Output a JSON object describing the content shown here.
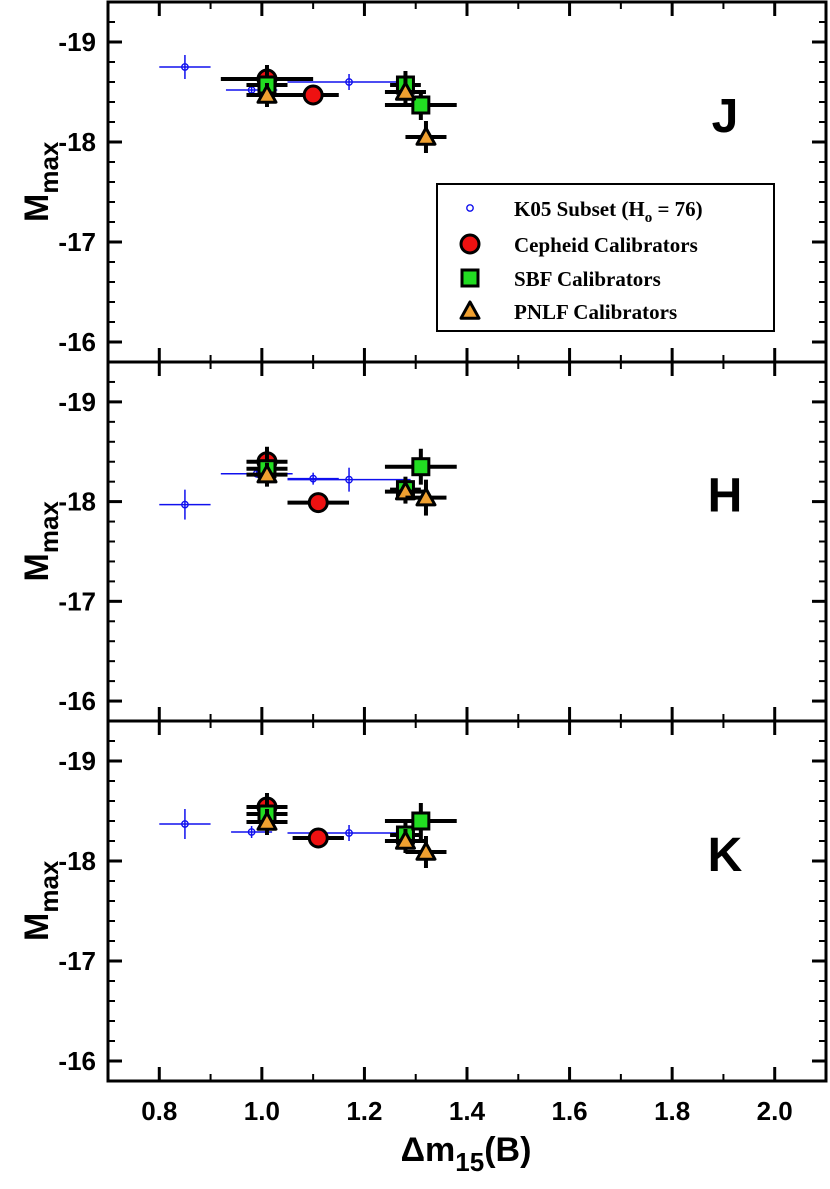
{
  "chart_data": {
    "type": "scatter",
    "xlabel": "Δm15(B)",
    "xlabel_parts": {
      "main": "Δm",
      "sub": "15",
      "tail": "(B)"
    },
    "ylabel_parts": {
      "main": "M",
      "sub": "max"
    },
    "xlim": [
      0.7,
      2.1
    ],
    "ylim": [
      -15.8,
      -19.4
    ],
    "y_reversed": true,
    "x_ticks": [
      0.8,
      1.0,
      1.2,
      1.4,
      1.6,
      1.8,
      2.0
    ],
    "x_tick_labels": [
      "0.8",
      "1.0",
      "1.2",
      "1.4",
      "1.6",
      "1.8",
      "2.0"
    ],
    "y_ticks": [
      -19,
      -18,
      -17,
      -16
    ],
    "y_tick_labels": [
      "-19",
      "-18",
      "-17",
      "-16"
    ],
    "grid": false,
    "legend": {
      "placement": "top-right of J panel",
      "entries": [
        {
          "key": "k05",
          "label_main": "K05 Subset (H",
          "label_sub": "o",
          "label_tail": " = 76)"
        },
        {
          "key": "cepheid",
          "label": "Cepheid Calibrators"
        },
        {
          "key": "sbf",
          "label": "SBF Calibrators"
        },
        {
          "key": "pnlf",
          "label": "PNLF Calibrators"
        }
      ]
    },
    "colors": {
      "k05": "#1010ee",
      "cepheid": "#ee1111",
      "sbf": "#22dd22",
      "pnlf": "#f0a030",
      "axis": "#000000"
    },
    "panels": [
      {
        "name": "J",
        "series": {
          "k05": [
            {
              "x": 0.85,
              "y": -18.75,
              "xerr": 0.05,
              "yerr": 0.12
            },
            {
              "x": 0.98,
              "y": -18.52,
              "xerr": 0.05,
              "yerr": 0.04
            },
            {
              "x": 1.17,
              "y": -18.6,
              "xerr": 0.12,
              "yerr": 0.08
            }
          ],
          "cepheid": [
            {
              "x": 1.01,
              "y": -18.63,
              "xerr": 0.09,
              "yerr": 0.14
            },
            {
              "x": 1.1,
              "y": -18.47,
              "xerr": 0.05,
              "yerr": 0.0
            }
          ],
          "sbf": [
            {
              "x": 1.01,
              "y": -18.57,
              "xerr": 0.04,
              "yerr": 0.14
            },
            {
              "x": 1.28,
              "y": -18.57,
              "xerr": 0.03,
              "yerr": 0.14
            },
            {
              "x": 1.31,
              "y": -18.37,
              "xerr": 0.07,
              "yerr": 0.15
            }
          ],
          "pnlf": [
            {
              "x": 1.01,
              "y": -18.47,
              "xerr": 0.04,
              "yerr": 0.12
            },
            {
              "x": 1.28,
              "y": -18.5,
              "xerr": 0.04,
              "yerr": 0.14
            },
            {
              "x": 1.32,
              "y": -18.05,
              "xerr": 0.04,
              "yerr": 0.16
            }
          ]
        }
      },
      {
        "name": "H",
        "series": {
          "k05": [
            {
              "x": 0.85,
              "y": -17.97,
              "xerr": 0.05,
              "yerr": 0.15
            },
            {
              "x": 0.99,
              "y": -18.28,
              "xerr": 0.07,
              "yerr": 0.04
            },
            {
              "x": 1.1,
              "y": -18.23,
              "xerr": 0.05,
              "yerr": 0.06
            },
            {
              "x": 1.17,
              "y": -18.22,
              "xerr": 0.12,
              "yerr": 0.12
            }
          ],
          "cepheid": [
            {
              "x": 1.01,
              "y": -18.4,
              "xerr": 0.04,
              "yerr": 0.15
            },
            {
              "x": 1.11,
              "y": -17.99,
              "xerr": 0.06,
              "yerr": 0.0
            }
          ],
          "sbf": [
            {
              "x": 1.01,
              "y": -18.33,
              "xerr": 0.04,
              "yerr": 0.15
            },
            {
              "x": 1.28,
              "y": -18.12,
              "xerr": 0.03,
              "yerr": 0.13
            },
            {
              "x": 1.31,
              "y": -18.35,
              "xerr": 0.07,
              "yerr": 0.18
            }
          ],
          "pnlf": [
            {
              "x": 1.01,
              "y": -18.27,
              "xerr": 0.04,
              "yerr": 0.12
            },
            {
              "x": 1.28,
              "y": -18.1,
              "xerr": 0.04,
              "yerr": 0.12
            },
            {
              "x": 1.32,
              "y": -18.04,
              "xerr": 0.04,
              "yerr": 0.18
            }
          ]
        }
      },
      {
        "name": "K",
        "series": {
          "k05": [
            {
              "x": 0.85,
              "y": -18.37,
              "xerr": 0.05,
              "yerr": 0.15
            },
            {
              "x": 0.98,
              "y": -18.29,
              "xerr": 0.04,
              "yerr": 0.06
            },
            {
              "x": 1.17,
              "y": -18.28,
              "xerr": 0.12,
              "yerr": 0.08
            }
          ],
          "cepheid": [
            {
              "x": 1.01,
              "y": -18.54,
              "xerr": 0.04,
              "yerr": 0.14
            },
            {
              "x": 1.11,
              "y": -18.23,
              "xerr": 0.05,
              "yerr": 0.0
            }
          ],
          "sbf": [
            {
              "x": 1.01,
              "y": -18.47,
              "xerr": 0.04,
              "yerr": 0.15
            },
            {
              "x": 1.28,
              "y": -18.26,
              "xerr": 0.03,
              "yerr": 0.12
            },
            {
              "x": 1.31,
              "y": -18.4,
              "xerr": 0.07,
              "yerr": 0.18
            }
          ],
          "pnlf": [
            {
              "x": 1.01,
              "y": -18.39,
              "xerr": 0.04,
              "yerr": 0.13
            },
            {
              "x": 1.28,
              "y": -18.2,
              "xerr": 0.04,
              "yerr": 0.12
            },
            {
              "x": 1.32,
              "y": -18.09,
              "xerr": 0.04,
              "yerr": 0.16
            }
          ]
        }
      }
    ]
  }
}
